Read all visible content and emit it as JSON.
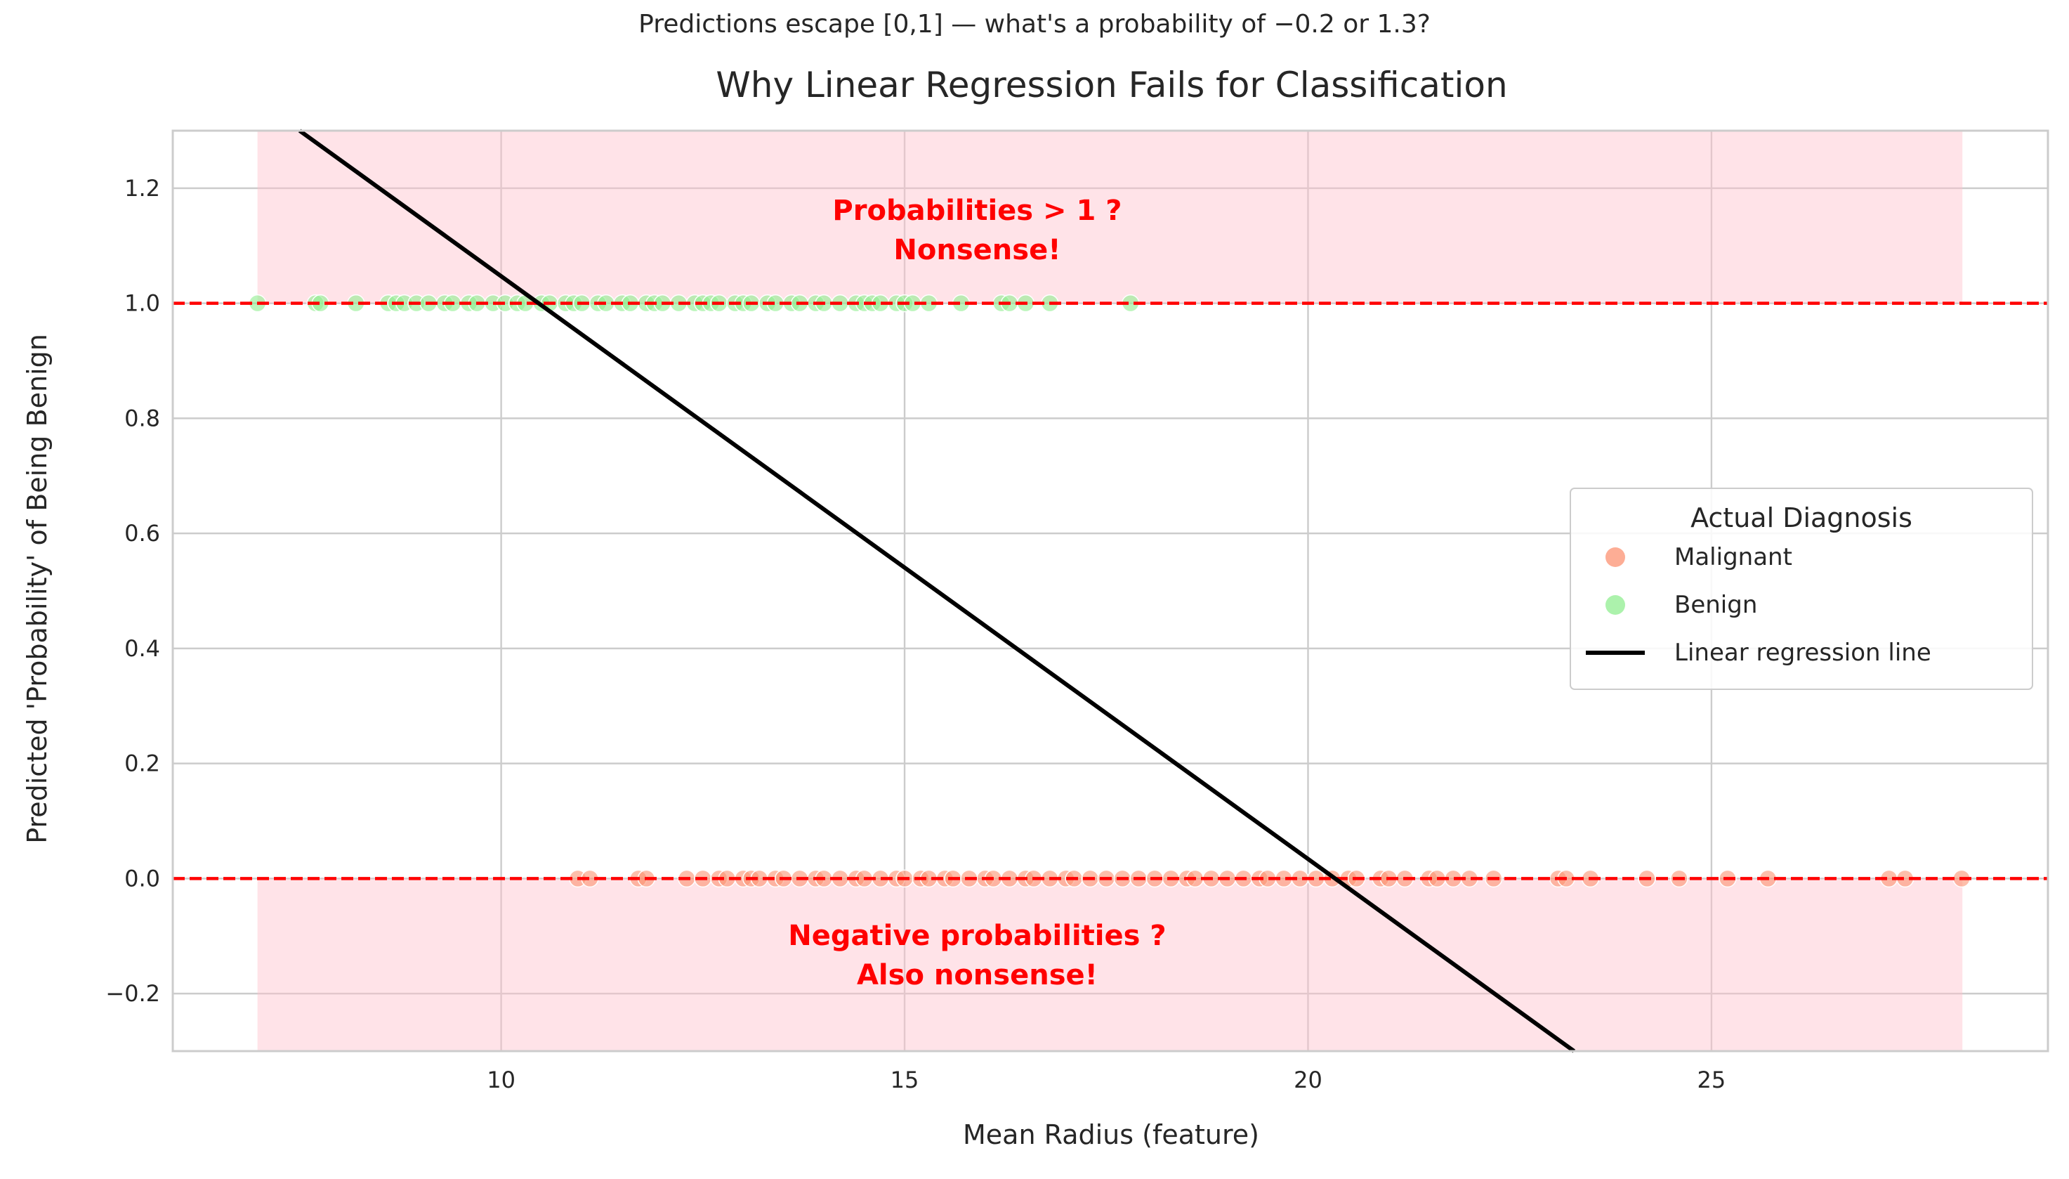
{
  "chart_data": {
    "type": "scatter",
    "suptitle": "Predictions escape [0,1] — what's a probability of −0.2 or 1.3?",
    "title": "Why Linear Regression Fails for Classification",
    "xlabel": "Mean Radius (feature)",
    "ylabel": "Predicted 'Probability' of Being Benign",
    "xlim": [
      5.93,
      29.17
    ],
    "ylim": [
      -0.3,
      1.3
    ],
    "xticks": [
      10,
      15,
      20,
      25
    ],
    "xtick_labels": [
      "10",
      "15",
      "20",
      "25"
    ],
    "yticks": [
      -0.2,
      0.0,
      0.2,
      0.4,
      0.6,
      0.8,
      1.0,
      1.2
    ],
    "ytick_labels": [
      "−0.2",
      "0.0",
      "0.2",
      "0.4",
      "0.6",
      "0.8",
      "1.0",
      "1.2"
    ],
    "grid": true,
    "shaded_regions": [
      {
        "x": [
          6.98,
          28.11
        ],
        "y": [
          1.0,
          1.3
        ],
        "color": "#ffc0cb"
      },
      {
        "x": [
          6.98,
          28.11
        ],
        "y": [
          -0.3,
          0.0
        ],
        "color": "#ffc0cb"
      }
    ],
    "hlines": [
      {
        "y": 1.0,
        "color": "#ff0000",
        "style": "dashed"
      },
      {
        "y": 0.0,
        "color": "#ff0000",
        "style": "dashed"
      }
    ],
    "annotations": [
      {
        "lines": [
          "Probabilities > 1 ?",
          "Nonsense!"
        ],
        "x": 15.9,
        "y": 1.13,
        "color": "#ff0000"
      },
      {
        "lines": [
          "Negative probabilities ?",
          "Also nonsense!"
        ],
        "x": 15.9,
        "y": -0.13,
        "color": "#ff0000"
      }
    ],
    "regression_line": {
      "slope": -0.1013,
      "intercept": 2.06,
      "x_range": [
        6.98,
        28.11
      ],
      "color": "#000000",
      "label": "Linear regression line"
    },
    "legend": {
      "title": "Actual Diagnosis",
      "placement": "center-right"
    },
    "series": [
      {
        "name": "Malignant",
        "y": 0,
        "color": "#fc9272",
        "x": [
          10.95,
          11.1,
          11.7,
          11.8,
          12.3,
          12.5,
          12.7,
          12.8,
          13.0,
          13.1,
          13.2,
          13.4,
          13.5,
          13.7,
          13.9,
          14.0,
          14.2,
          14.4,
          14.5,
          14.7,
          14.9,
          15.0,
          15.2,
          15.3,
          15.5,
          15.6,
          15.8,
          16.0,
          16.1,
          16.3,
          16.5,
          16.6,
          16.8,
          17.0,
          17.1,
          17.3,
          17.5,
          17.7,
          17.9,
          18.1,
          18.3,
          18.5,
          18.6,
          18.8,
          19.0,
          19.2,
          19.4,
          19.5,
          19.7,
          19.9,
          20.1,
          20.3,
          20.5,
          20.6,
          20.9,
          21.0,
          21.2,
          21.5,
          21.6,
          21.8,
          22.0,
          22.3,
          23.1,
          23.2,
          23.5,
          24.2,
          24.6,
          25.2,
          25.7,
          27.2,
          27.4,
          28.1
        ]
      },
      {
        "name": "Benign",
        "y": 1,
        "color": "#90ee90",
        "x": [
          6.98,
          7.7,
          7.76,
          8.2,
          8.6,
          8.7,
          8.8,
          8.95,
          9.1,
          9.3,
          9.4,
          9.6,
          9.7,
          9.9,
          10.05,
          10.2,
          10.3,
          10.5,
          10.6,
          10.8,
          10.9,
          11.0,
          11.2,
          11.3,
          11.5,
          11.6,
          11.8,
          11.9,
          12.0,
          12.2,
          12.4,
          12.5,
          12.6,
          12.7,
          12.9,
          13.0,
          13.1,
          13.3,
          13.4,
          13.6,
          13.7,
          13.9,
          14.0,
          14.2,
          14.4,
          14.5,
          14.6,
          14.7,
          14.9,
          15.0,
          15.1,
          15.3,
          15.7,
          16.2,
          16.3,
          16.5,
          16.8,
          17.8
        ]
      }
    ]
  }
}
